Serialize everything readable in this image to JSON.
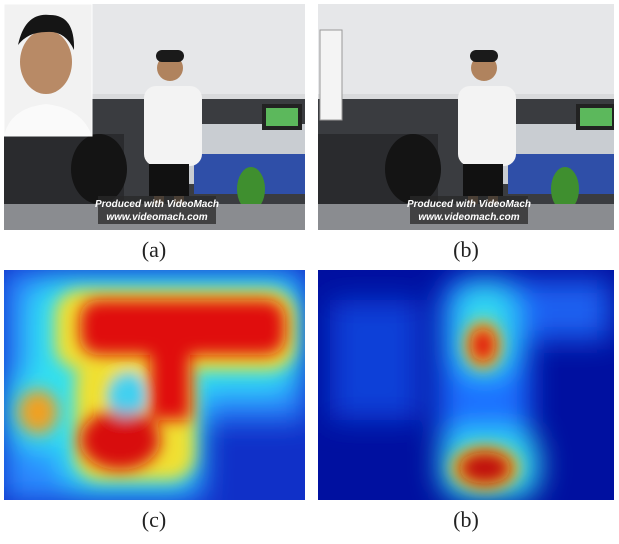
{
  "figure": {
    "panels": [
      {
        "label": "(a)",
        "watermark": [
          "Produced with VideoMach",
          "www.videomach.com"
        ]
      },
      {
        "label": "(b)",
        "watermark": [
          "Produced with VideoMach",
          "www.videomach.com"
        ]
      },
      {
        "label": "(c)"
      },
      {
        "label": "(b)"
      }
    ]
  }
}
